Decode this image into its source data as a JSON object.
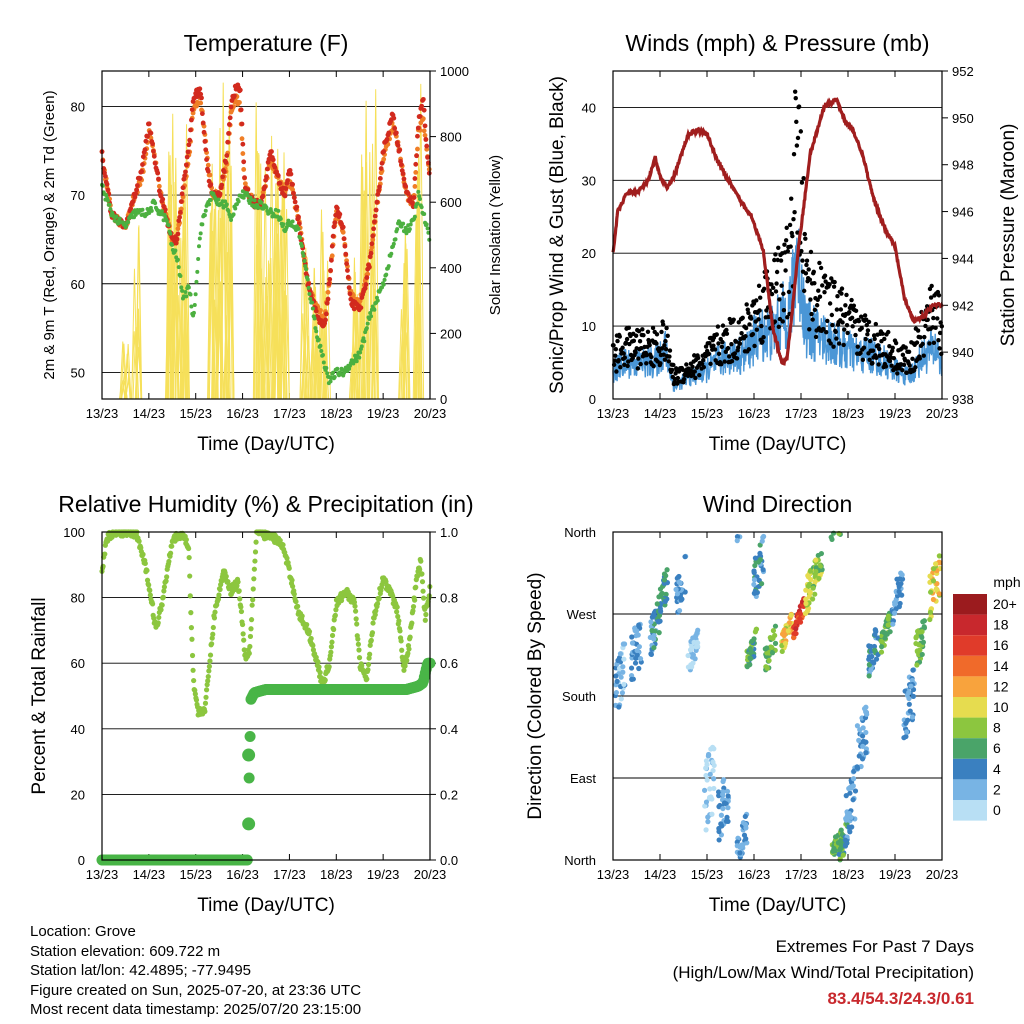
{
  "x_ticks": [
    "13/23",
    "14/23",
    "15/23",
    "16/23",
    "17/23",
    "18/23",
    "19/23",
    "20/23"
  ],
  "x_label": "Time (Day/UTC)",
  "colors": {
    "temp2m": "#d22a1e",
    "temp9m": "#f07e26",
    "dewpoint": "#4cb040",
    "solar": "#f6e05a",
    "wind": "#4a96d6",
    "gust": "#000000",
    "pressure": "#a01e1e",
    "rh": "#8cc63f",
    "precip": "#49b547"
  },
  "chart_data": [
    {
      "type": "line",
      "title": "Temperature (F)",
      "xlabel": "Time (Day/UTC)",
      "ylabel": "2m & 9m T (Red, Orange) & 2m Td (Green)",
      "y2label": "Solar Insolation (Yellow)",
      "ylim": [
        47,
        84
      ],
      "y2lim": [
        0,
        1000
      ],
      "yticks": [
        50,
        60,
        70,
        80
      ],
      "y2ticks": [
        0,
        200,
        400,
        600,
        800,
        1000
      ],
      "xlim": [
        0,
        7
      ],
      "x": [
        0,
        0.2,
        0.35,
        0.5,
        0.7,
        0.85,
        1.0,
        1.1,
        1.25,
        1.4,
        1.5,
        1.6,
        1.75,
        1.85,
        1.95,
        2.1,
        2.25,
        2.35,
        2.5,
        2.65,
        2.75,
        2.85,
        2.95,
        3.05,
        3.25,
        3.4,
        3.6,
        3.75,
        3.9,
        4.0,
        4.2,
        4.4,
        4.6,
        4.75,
        4.85,
        5.0,
        5.15,
        5.3,
        5.5,
        5.7,
        5.85,
        6.0,
        6.2,
        6.35,
        6.5,
        6.65,
        6.75,
        6.85,
        6.95,
        7.0
      ],
      "series": [
        {
          "key": "t2m",
          "values": [
            74.5,
            68,
            67,
            66.5,
            70,
            73,
            78,
            75,
            70,
            67,
            65,
            65,
            72,
            75,
            81,
            82,
            73,
            70,
            70,
            74,
            80,
            82,
            82,
            71,
            69,
            69,
            75,
            72,
            70,
            73,
            67,
            60,
            56,
            55,
            60,
            69,
            66,
            58,
            57,
            62,
            68,
            75,
            79,
            75,
            70,
            69,
            78,
            81,
            74,
            72
          ]
        },
        {
          "key": "t9m",
          "values": [
            74.5,
            68,
            67,
            66.5,
            70,
            72,
            77,
            75,
            70,
            67,
            65,
            65,
            71,
            74,
            80,
            81,
            74,
            70,
            70,
            73,
            79,
            81,
            80,
            71,
            69,
            69,
            74,
            72,
            70,
            72,
            67,
            60,
            57,
            56,
            60,
            68,
            66,
            59,
            58,
            62,
            68,
            74,
            78,
            75,
            70,
            69,
            77,
            79,
            74,
            72
          ]
        },
        {
          "key": "td2m",
          "values": [
            71,
            68,
            67,
            66.5,
            68,
            68,
            68,
            69,
            68,
            67,
            64,
            63,
            58,
            60,
            56,
            66,
            69,
            70,
            69,
            69,
            67,
            69,
            70,
            70,
            69,
            69,
            68,
            68,
            66,
            67,
            66,
            60,
            54,
            51,
            49,
            50,
            50,
            51,
            52,
            56,
            58,
            60,
            64,
            67,
            66,
            67,
            70,
            68,
            66,
            64
          ]
        }
      ],
      "solar_peaks_day": [
        0.2,
        0.55,
        0.95,
        0.98,
        0.85,
        0.98,
        0.98,
        0.95,
        0.95,
        0.85,
        0.9,
        0.82,
        0.5,
        0.45,
        0.6,
        0.5,
        0.92,
        0.95,
        0.55,
        0.98
      ],
      "solar_peaks_x": [
        0.5,
        0.72,
        1.45,
        1.62,
        1.75,
        2.38,
        2.55,
        2.7,
        3.35,
        3.55,
        3.7,
        3.88,
        4.35,
        4.55,
        4.75,
        5.4,
        5.6,
        5.78,
        6.45,
        6.75
      ]
    },
    {
      "type": "line",
      "title": "Winds (mph) & Pressure (mb)",
      "xlabel": "Time (Day/UTC)",
      "ylabel": "Sonic/Prop Wind & Gust (Blue, Black)",
      "y2label": "Station Pressure (Maroon)",
      "ylim": [
        0,
        45
      ],
      "y2lim": [
        938,
        952
      ],
      "yticks": [
        0,
        10,
        20,
        30,
        40
      ],
      "y2ticks": [
        938,
        940,
        942,
        944,
        946,
        948,
        950,
        952
      ],
      "xlim": [
        0,
        7
      ],
      "pressure": {
        "x": [
          0,
          0.1,
          0.3,
          0.5,
          0.75,
          0.9,
          1.0,
          1.15,
          1.3,
          1.6,
          1.8,
          2.0,
          2.2,
          2.4,
          2.7,
          2.95,
          3.2,
          3.4,
          3.6,
          3.7,
          3.8,
          3.95,
          4.2,
          4.5,
          4.75,
          4.95,
          5.1,
          5.3,
          5.55,
          5.8,
          6.0,
          6.2,
          6.4,
          6.6,
          6.8,
          7.0
        ],
        "values": [
          944.2,
          946,
          946.8,
          946.8,
          947.3,
          948.3,
          947.5,
          947,
          947.5,
          949.3,
          949.5,
          949.3,
          948.3,
          947.5,
          946.5,
          945.8,
          944.3,
          941,
          939.5,
          939.7,
          941.5,
          944.5,
          948.5,
          950.5,
          950.8,
          949.8,
          949.5,
          948.5,
          946.5,
          945.2,
          944.5,
          942.3,
          941.3,
          941.5,
          942,
          942
        ]
      },
      "wind_base": {
        "x": [
          0,
          0.3,
          0.6,
          0.9,
          1.1,
          1.3,
          1.6,
          1.9,
          2.2,
          2.5,
          2.8,
          3.0,
          3.2,
          3.4,
          3.6,
          3.8,
          3.9,
          4.0,
          4.1,
          4.3,
          4.6,
          4.9,
          5.2,
          5.5,
          5.8,
          6.0,
          6.3,
          6.6,
          6.9,
          7.0
        ],
        "values": [
          4,
          5,
          5,
          5,
          7,
          1.5,
          3,
          3.5,
          5,
          6,
          6,
          8,
          9,
          9,
          11,
          13,
          20,
          16,
          10,
          9,
          8,
          7,
          6,
          6,
          5,
          4,
          3,
          6,
          7,
          4
        ]
      },
      "gust_base": {
        "x": [
          0,
          0.3,
          0.6,
          0.9,
          1.1,
          1.3,
          1.6,
          1.9,
          2.2,
          2.5,
          2.8,
          3.0,
          3.2,
          3.4,
          3.6,
          3.8,
          3.9,
          4.0,
          4.1,
          4.3,
          4.6,
          4.9,
          5.2,
          5.5,
          5.8,
          6.0,
          6.3,
          6.6,
          6.9,
          7.0
        ],
        "values": [
          6,
          7,
          7,
          7,
          8,
          3,
          4,
          5,
          7,
          8,
          9,
          11,
          13,
          15,
          15,
          20,
          30,
          28,
          17,
          14,
          12,
          11,
          9,
          8,
          7,
          6,
          5,
          9,
          13,
          8
        ]
      }
    },
    {
      "type": "line",
      "title": "Relative Humidity (%) & Precipitation (in)",
      "xlabel": "Time (Day/UTC)",
      "ylabel": "Percent & Total Rainfall",
      "ylim": [
        0,
        100
      ],
      "y2lim": [
        0,
        1.0
      ],
      "yticks": [
        0,
        20,
        40,
        60,
        80,
        100
      ],
      "y2ticks": [
        0.0,
        0.2,
        0.4,
        0.6,
        0.8,
        1.0
      ],
      "xlim": [
        0,
        7
      ],
      "rh": {
        "x": [
          0,
          0.1,
          0.25,
          0.5,
          0.75,
          0.95,
          1.05,
          1.15,
          1.3,
          1.5,
          1.75,
          1.85,
          1.95,
          2.05,
          2.2,
          2.4,
          2.6,
          2.75,
          2.9,
          3.0,
          3.05,
          3.15,
          3.3,
          3.5,
          3.7,
          3.85,
          4.0,
          4.2,
          4.4,
          4.6,
          4.7,
          4.85,
          5.0,
          5.2,
          5.4,
          5.5,
          5.65,
          5.8,
          6.0,
          6.2,
          6.3,
          6.45,
          6.55,
          6.7,
          6.8,
          6.9,
          7.0
        ],
        "values": [
          88,
          98,
          100,
          100,
          99,
          88,
          80,
          70,
          80,
          98,
          99,
          95,
          55,
          45,
          46,
          75,
          88,
          82,
          85,
          72,
          62,
          64,
          100,
          99,
          98,
          96,
          88,
          75,
          70,
          60,
          53,
          60,
          78,
          82,
          78,
          60,
          55,
          74,
          86,
          80,
          76,
          58,
          65,
          84,
          91,
          74,
          83
        ]
      },
      "precip": {
        "x": [
          0,
          1,
          2,
          3.1,
          3.12,
          3.15,
          3.18,
          3.25,
          3.5,
          4,
          4.5,
          5,
          5.5,
          6,
          6.5,
          6.75,
          6.85,
          6.95,
          7.0
        ],
        "values": [
          0,
          0,
          0,
          0,
          0.11,
          0.32,
          0.49,
          0.51,
          0.52,
          0.52,
          0.52,
          0.52,
          0.52,
          0.52,
          0.52,
          0.53,
          0.54,
          0.6,
          0.6
        ]
      }
    },
    {
      "type": "scatter",
      "title": "Wind Direction",
      "xlabel": "Time (Day/UTC)",
      "ylabel": "Direction (Colored By Speed)",
      "yticks": [
        "North",
        "East",
        "South",
        "West",
        "North"
      ],
      "ylim": [
        0,
        360
      ],
      "xlim": [
        0,
        7
      ],
      "colorbar_title": "mph",
      "colorbar_labels": [
        "20+",
        "18",
        "16",
        "14",
        "12",
        "10",
        "8",
        "6",
        "4",
        "2",
        "0"
      ],
      "colorbar_colors": [
        "#9b1b1e",
        "#c8282d",
        "#e03b2a",
        "#f06a2a",
        "#f8a33d",
        "#e6dc4f",
        "#8cc63f",
        "#4aa469",
        "#3a80c0",
        "#78b4e4",
        "#b8dff4"
      ],
      "clusters": [
        {
          "x": 0.15,
          "dir": 200,
          "spread": 60,
          "spd": 2
        },
        {
          "x": 0.5,
          "dir": 230,
          "spread": 60,
          "spd": 3
        },
        {
          "x": 0.9,
          "dir": 255,
          "spread": 40,
          "spd": 4
        },
        {
          "x": 1.05,
          "dir": 290,
          "spread": 40,
          "spd": 5
        },
        {
          "x": 1.45,
          "dir": 300,
          "spread": 50,
          "spd": 3
        },
        {
          "x": 1.7,
          "dir": 230,
          "spread": 30,
          "spd": 1
        },
        {
          "x": 2.05,
          "dir": 80,
          "spread": 80,
          "spd": 1
        },
        {
          "x": 2.35,
          "dir": 60,
          "spread": 60,
          "spd": 3
        },
        {
          "x": 2.75,
          "dir": 20,
          "spread": 40,
          "spd": 3
        },
        {
          "x": 2.95,
          "dir": 230,
          "spread": 25,
          "spd": 6
        },
        {
          "x": 3.1,
          "dir": 320,
          "spread": 50,
          "spd": 4
        },
        {
          "x": 3.35,
          "dir": 230,
          "spread": 30,
          "spd": 7
        },
        {
          "x": 3.7,
          "dir": 250,
          "spread": 20,
          "spd": 10
        },
        {
          "x": 3.95,
          "dir": 265,
          "spread": 20,
          "spd": 16
        },
        {
          "x": 4.2,
          "dir": 300,
          "spread": 40,
          "spd": 9
        },
        {
          "x": 4.35,
          "dir": 320,
          "spread": 30,
          "spd": 8
        },
        {
          "x": 4.75,
          "dir": 15,
          "spread": 25,
          "spd": 7
        },
        {
          "x": 4.9,
          "dir": 20,
          "spread": 30,
          "spd": 6
        },
        {
          "x": 5.05,
          "dir": 60,
          "spread": 60,
          "spd": 3
        },
        {
          "x": 5.3,
          "dir": 130,
          "spread": 60,
          "spd": 3
        },
        {
          "x": 5.55,
          "dir": 230,
          "spread": 40,
          "spd": 4
        },
        {
          "x": 5.8,
          "dir": 250,
          "spread": 25,
          "spd": 7
        },
        {
          "x": 6.05,
          "dir": 290,
          "spread": 40,
          "spd": 3
        },
        {
          "x": 6.3,
          "dir": 170,
          "spread": 60,
          "spd": 3
        },
        {
          "x": 6.55,
          "dir": 240,
          "spread": 40,
          "spd": 7
        },
        {
          "x": 6.85,
          "dir": 300,
          "spread": 50,
          "spd": 10
        }
      ]
    }
  ],
  "info": {
    "location": "Location: Grove",
    "elevation": "Station elevation: 609.722 m",
    "latlon": "Station lat/lon: 42.4895; -77.9495",
    "created": "Figure created on Sun, 2025-07-20, at 23:36 UTC",
    "recent": "Most recent data timestamp: 2025/07/20 23:15:00"
  },
  "extremes": {
    "title": "Extremes For Past 7 Days",
    "subtitle": "(High/Low/Max Wind/Total Precipitation)",
    "value": "83.4/54.3/24.3/0.61"
  }
}
